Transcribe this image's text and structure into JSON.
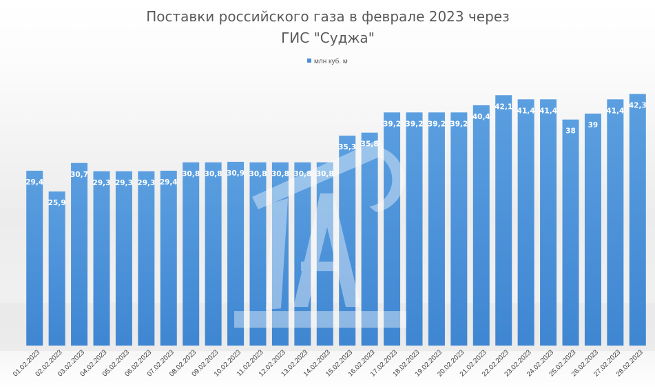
{
  "chart_data": {
    "type": "bar",
    "title_line1": "Поставки российского газа в феврале 2023 через",
    "title_line2": "ГИС \"Суджа\"",
    "legend_position": "top",
    "grid": false,
    "ylim": [
      0,
      45
    ],
    "categories": [
      "01.02.2023",
      "02.02.2023",
      "03.02.2023",
      "04.02.2023",
      "05.02.2023",
      "06.02.2023",
      "07.02.2023",
      "08.02.2023",
      "09.02.2023",
      "10.02.2023",
      "11.02.2023",
      "12.02.2023",
      "13.02.2023",
      "14.02.2023",
      "15.02.2023",
      "16.02.2023",
      "17.02.2023",
      "18.02.2023",
      "19.02.2023",
      "20.02.2023",
      "21.02.2023",
      "22.02.2023",
      "23.02.2023",
      "24.02.2023",
      "25.02.2023",
      "26.02.2023",
      "27.02.2023",
      "28.02.2023"
    ],
    "series": [
      {
        "name": "млн куб. м",
        "color": "#4a8fd6",
        "values": [
          29.4,
          25.9,
          30.7,
          29.3,
          29.3,
          29.3,
          29.4,
          30.8,
          30.8,
          30.9,
          30.8,
          30.8,
          30.8,
          30.8,
          35.3,
          35.8,
          39.2,
          39.2,
          39.2,
          39.2,
          40.4,
          42.1,
          41.4,
          41.4,
          38,
          39,
          41.4,
          42.3
        ],
        "labels": [
          "29,4",
          "25,9",
          "30,7",
          "29,3",
          "29,3",
          "29,3",
          "29,4",
          "30,8",
          "30,8",
          "30,9",
          "30,8",
          "30,8",
          "30,8",
          "30,8",
          "35,3",
          "35,8",
          "39,2",
          "39,2",
          "39,2",
          "39,2",
          "40,4",
          "42,1",
          "41,4",
          "41,4",
          "38",
          "39",
          "41,4",
          "42,3"
        ]
      }
    ]
  }
}
